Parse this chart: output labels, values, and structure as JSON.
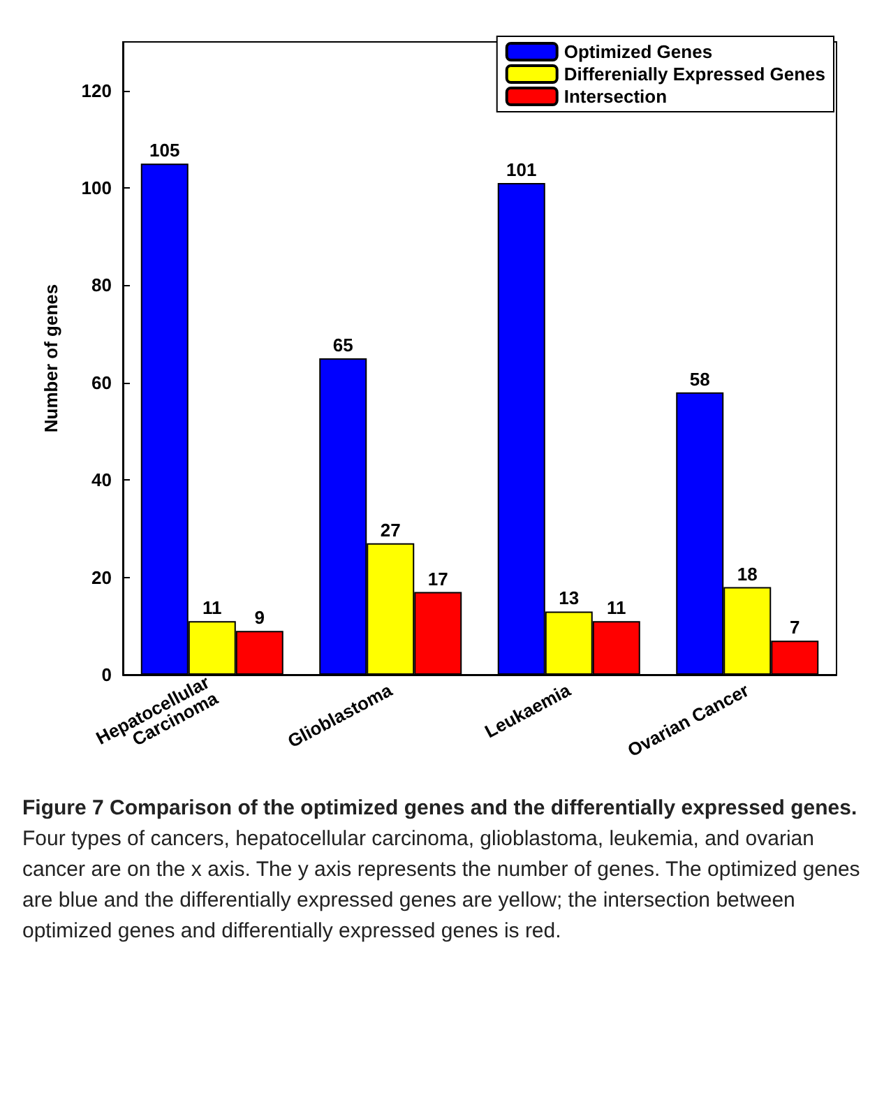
{
  "chart_data": {
    "type": "bar",
    "title": "Figure 7 Comparison of the optimized genes and the differentially expressed genes.",
    "annotations": [
      "Four types of cancers, hepatocellular carcinoma, glioblastoma, leukemia, and ovarian cancer are on the x axis. The y axis represents the number of genes. The optimized genes are blue and the differentially expressed genes are yellow; the intersection between optimized genes and differentially expressed genes is red."
    ],
    "ylabel": "Number of genes",
    "categories": [
      "Hepatocellular\nCarcinoma",
      "Glioblastoma",
      "Leukaemia",
      "Ovarian Cancer"
    ],
    "series": [
      {
        "name": "Optimized Genes",
        "color": "#0000ff",
        "values": [
          105,
          65,
          101,
          58
        ]
      },
      {
        "name": "Differenially Expressed Genes",
        "color": "#ffff00",
        "values": [
          11,
          27,
          13,
          18
        ]
      },
      {
        "name": "Intersection",
        "color": "#ff0000",
        "values": [
          9,
          17,
          11,
          7
        ]
      }
    ],
    "ylim": [
      0,
      130
    ],
    "yticks": [
      0,
      20,
      40,
      60,
      80,
      100,
      120
    ],
    "data_labels": true,
    "legend": "top right",
    "grid": false
  }
}
